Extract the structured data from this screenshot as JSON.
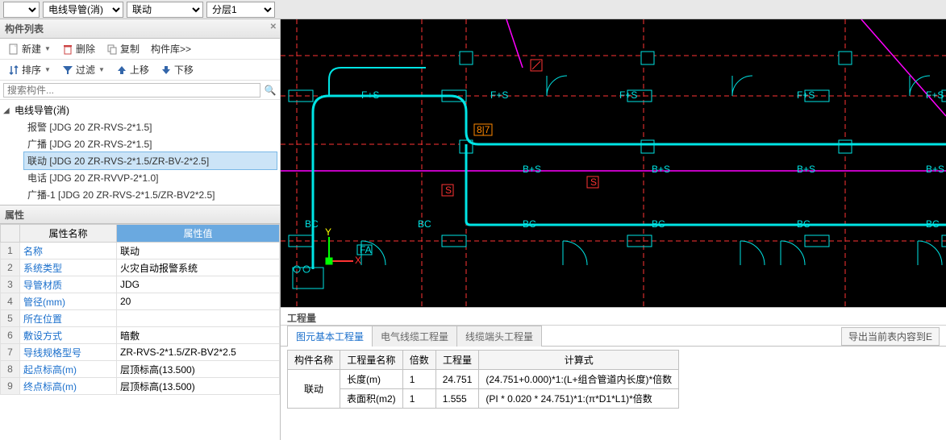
{
  "topbar": {
    "sel1": "",
    "sel2": "电线导管(消)",
    "sel3": "联动",
    "sel4": "分层1"
  },
  "componentList": {
    "title": "构件列表",
    "toolbar1": {
      "new": "新建",
      "delete": "删除",
      "copy": "复制",
      "lib": "构件库>>"
    },
    "toolbar2": {
      "sort": "排序",
      "filter": "过滤",
      "up": "上移",
      "down": "下移"
    },
    "searchPlaceholder": "搜索构件...",
    "tree": {
      "root": "电线导管(消)",
      "items": [
        "报警 [JDG 20 ZR-RVS-2*1.5]",
        "广播 [JDG 20 ZR-RVS-2*1.5]",
        "联动 [JDG 20 ZR-RVS-2*1.5/ZR-BV-2*2.5]",
        "电话 [JDG 20 ZR-RVVP-2*1.0]",
        "广播-1 [JDG 20 ZR-RVS-2*1.5/ZR-BV2*2.5]"
      ],
      "selectedIndex": 2
    }
  },
  "properties": {
    "title": "属性",
    "headers": {
      "name": "属性名称",
      "value": "属性值"
    },
    "rows": [
      {
        "n": "1",
        "name": "名称",
        "value": "联动",
        "link": true
      },
      {
        "n": "2",
        "name": "系统类型",
        "value": "火灾自动报警系统",
        "link": true
      },
      {
        "n": "3",
        "name": "导管材质",
        "value": "JDG",
        "link": true
      },
      {
        "n": "4",
        "name": "管径(mm)",
        "value": "20",
        "link": true
      },
      {
        "n": "5",
        "name": "所在位置",
        "value": "",
        "link": true
      },
      {
        "n": "6",
        "name": "敷设方式",
        "value": "暗敷",
        "link": true
      },
      {
        "n": "7",
        "name": "导线规格型号",
        "value": "ZR-RVS-2*1.5/ZR-BV2*2.5",
        "link": true
      },
      {
        "n": "8",
        "name": "起点标高(m)",
        "value": "层顶标高(13.500)",
        "link": true
      },
      {
        "n": "9",
        "name": "终点标高(m)",
        "value": "层顶标高(13.500)",
        "link": true
      }
    ]
  },
  "quantity": {
    "title": "工程量",
    "tabs": [
      "图元基本工程量",
      "电气线缆工程量",
      "线缆端头工程量"
    ],
    "activeTab": 0,
    "exportBtn": "导出当前表内容到E",
    "headers": [
      "构件名称",
      "工程量名称",
      "倍数",
      "工程量",
      "计算式"
    ],
    "mergedName": "联动",
    "rows": [
      {
        "qn": "长度(m)",
        "mult": "1",
        "qty": "24.751",
        "formula": "(24.751+0.000)*1:(L+组合管道内长度)*倍数"
      },
      {
        "qn": "表面积(m2)",
        "mult": "1",
        "qty": "1.555",
        "formula": "(PI * 0.020 * 24.751)*1:(π*D1*L1)*倍数"
      }
    ]
  },
  "canvas": {
    "bg": "#000000",
    "cyan": "#00e5e5",
    "magenta": "#ff00ff",
    "red": "#ff3333",
    "green": "#00ff00",
    "yellow": "#ffff00",
    "orange": "#ff8800",
    "labelColor": "#00e5e5",
    "labels": {
      "fs": "F+S",
      "bs": "B+S",
      "bc": "BC",
      "fa": "FA",
      "s": "S",
      "x": "X",
      "y": "Y",
      "n87": "8|7"
    }
  }
}
